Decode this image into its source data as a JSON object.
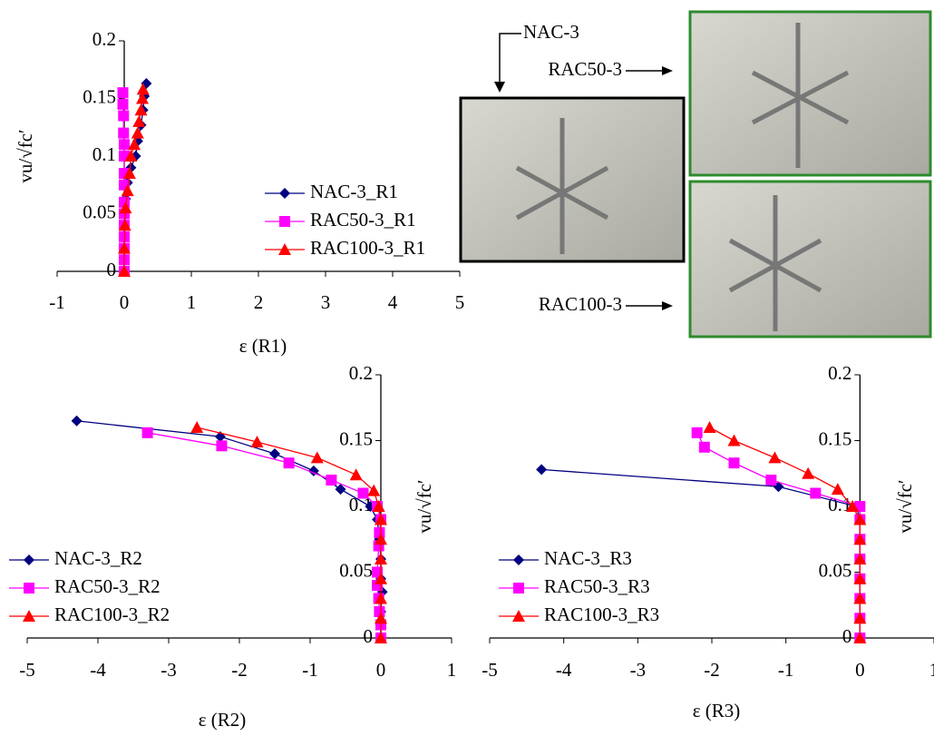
{
  "chart_data": [
    {
      "type": "line",
      "xlabel": "ε (R1)",
      "ylabel": "vu/√fc′",
      "xlim": [
        -1,
        5
      ],
      "ylim": [
        0,
        0.2
      ],
      "xticks": [
        -1,
        0,
        1,
        2,
        3,
        4,
        5
      ],
      "yticks": [
        0,
        0.05,
        0.1,
        0.15,
        0.2
      ],
      "legend": "lower right",
      "series": [
        {
          "name": "NAC-3_R1",
          "color": "#000080",
          "marker": "diamond",
          "x": [
            0,
            0,
            0,
            0.02,
            0.05,
            0.1,
            0.17,
            0.2,
            0.25,
            0.28,
            0.3,
            0.33
          ],
          "values": [
            0,
            0.02,
            0.04,
            0.063,
            0.077,
            0.09,
            0.1,
            0.113,
            0.127,
            0.14,
            0.152,
            0.163
          ]
        },
        {
          "name": "RAC50-3_R1",
          "color": "#ff00ff",
          "marker": "square",
          "x": [
            -0.02,
            -0.02,
            -0.01,
            -0.01,
            0,
            0,
            0,
            0,
            0,
            0,
            0,
            0,
            0,
            0,
            0
          ],
          "values": [
            0.155,
            0.145,
            0.135,
            0.12,
            0.11,
            0.1,
            0.085,
            0.075,
            0.06,
            0.05,
            0.04,
            0.03,
            0.02,
            0.01,
            0
          ]
        },
        {
          "name": "RAC100-3_R1",
          "color": "#ff0000",
          "marker": "triangle",
          "x": [
            0,
            0,
            0.01,
            0.02,
            0.05,
            0.08,
            0.1,
            0.15,
            0.2,
            0.22,
            0.25,
            0.27,
            0.28
          ],
          "values": [
            0,
            0.02,
            0.04,
            0.055,
            0.07,
            0.085,
            0.1,
            0.11,
            0.12,
            0.13,
            0.14,
            0.15,
            0.158
          ]
        }
      ]
    },
    {
      "type": "line",
      "xlabel": "ε (R2)",
      "ylabel": "vu/√fc′",
      "xlim": [
        -5,
        1
      ],
      "ylim": [
        0,
        0.2
      ],
      "xticks": [
        -5,
        -4,
        -3,
        -2,
        -1,
        0,
        1
      ],
      "yticks": [
        0,
        0.05,
        0.1,
        0.15,
        0.2
      ],
      "legend": "lower left",
      "series": [
        {
          "name": "NAC-3_R2",
          "color": "#000080",
          "marker": "diamond",
          "x": [
            -4.3,
            -2.27,
            -1.5,
            -0.95,
            -0.57,
            -0.15,
            -0.05,
            -0.02,
            0,
            0,
            0.02,
            0,
            0
          ],
          "values": [
            0.165,
            0.153,
            0.14,
            0.127,
            0.113,
            0.1,
            0.09,
            0.075,
            0.06,
            0.045,
            0.035,
            0.02,
            0
          ]
        },
        {
          "name": "RAC50-3_R2",
          "color": "#ff00ff",
          "marker": "square",
          "x": [
            -3.3,
            -2.25,
            -1.3,
            -0.7,
            -0.25,
            -0.05,
            0,
            -0.02,
            -0.03,
            -0.05,
            -0.05,
            -0.03,
            -0.02,
            0,
            0
          ],
          "values": [
            0.156,
            0.146,
            0.133,
            0.12,
            0.11,
            0.1,
            0.09,
            0.08,
            0.07,
            0.05,
            0.04,
            0.03,
            0.02,
            0.01,
            0
          ]
        },
        {
          "name": "RAC100-3_R2",
          "color": "#ff0000",
          "marker": "triangle",
          "x": [
            -2.6,
            -1.75,
            -0.9,
            -0.35,
            -0.1,
            -0.03,
            0,
            0,
            0,
            0,
            0,
            0,
            0
          ],
          "values": [
            0.16,
            0.149,
            0.137,
            0.124,
            0.112,
            0.1,
            0.09,
            0.075,
            0.06,
            0.045,
            0.03,
            0.015,
            0
          ]
        }
      ]
    },
    {
      "type": "line",
      "xlabel": "ε (R3)",
      "ylabel": "vu/√fc′",
      "xlim": [
        -5,
        1
      ],
      "ylim": [
        0,
        0.2
      ],
      "xticks": [
        -5,
        -4,
        -3,
        -2,
        -1,
        0,
        1
      ],
      "yticks": [
        0,
        0.05,
        0.1,
        0.15,
        0.2
      ],
      "legend": "lower left",
      "series": [
        {
          "name": "NAC-3_R3",
          "color": "#000080",
          "marker": "diamond",
          "x": [
            -4.3,
            -1.1,
            -0.05,
            0,
            0,
            0,
            0,
            0,
            0,
            0
          ],
          "values": [
            0.128,
            0.115,
            0.1,
            0.09,
            0.075,
            0.06,
            0.045,
            0.03,
            0.015,
            0
          ]
        },
        {
          "name": "RAC50-3_R3",
          "color": "#ff00ff",
          "marker": "square",
          "x": [
            -2.2,
            -2.1,
            -1.7,
            -1.2,
            -0.6,
            0,
            0,
            0,
            0,
            0,
            0,
            0,
            0
          ],
          "values": [
            0.156,
            0.145,
            0.133,
            0.12,
            0.11,
            0.1,
            0.09,
            0.075,
            0.06,
            0.045,
            0.03,
            0.015,
            0
          ]
        },
        {
          "name": "RAC100-3_R3",
          "color": "#ff0000",
          "marker": "triangle",
          "x": [
            -2.03,
            -1.7,
            -1.15,
            -0.7,
            -0.3,
            -0.1,
            0,
            0,
            0,
            0,
            0,
            0,
            0
          ],
          "values": [
            0.16,
            0.15,
            0.137,
            0.125,
            0.113,
            0.1,
            0.09,
            0.075,
            0.06,
            0.045,
            0.03,
            0.015,
            0
          ]
        }
      ]
    }
  ],
  "photo_labels": [
    "NAC-3",
    "RAC50-3",
    "RAC100-3"
  ]
}
